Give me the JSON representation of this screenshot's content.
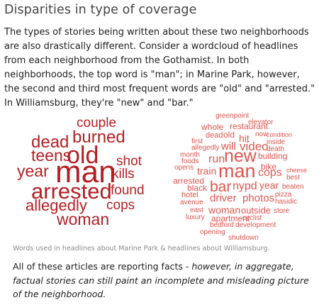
{
  "heading": "Disparities in type of coverage",
  "intro": "The types of stories being written about these two neighborhoods are also drastically different. Consider a wordcloud of headlines from each neighborhood from the Gothamist. In both neighborhoods, the top word is \"man\"; in Marine Park, however, the second and third most frequent words are \"old\" and \"arrested.\" In Williamsburg, they're \"new\" and \"bar.\"",
  "wordcloud_left": {
    "words": [
      "couple",
      "burned",
      "dead",
      "old",
      "teens",
      "shot",
      "year",
      "man",
      "kills",
      "arrested",
      "found",
      "allegedly",
      "cops",
      "woman"
    ],
    "color": "#b51f24"
  },
  "wordcloud_right": {
    "words": [
      "greenpoint",
      "elevator",
      "whole",
      "restaurant",
      "dead",
      "old",
      "hit",
      "now",
      "condition",
      "first",
      "inside",
      "allegedly",
      "will",
      "video",
      "death",
      "month",
      "building",
      "foods",
      "run",
      "new",
      "opens",
      "train",
      "man",
      "bike",
      "cops",
      "cheese",
      "arrested",
      "best",
      "black",
      "bar",
      "nypd",
      "year",
      "beaten",
      "hotel",
      "driver",
      "photos",
      "pizza",
      "avenue",
      "hasidic",
      "east",
      "woman",
      "outside",
      "store",
      "luxury",
      "apartment",
      "cyclist",
      "bedford",
      "development",
      "opening",
      "shutdown"
    ],
    "color": "#e0554e"
  },
  "caption": "Words used in headlines about Marine Park & headlines about Williamsburg.",
  "outro": {
    "lead": "All of these articles are reporting facts - ",
    "emphasis": "however, in aggregate, factual stories can still paint an incomplete and misleading picture of the neighborhood",
    "end": "."
  }
}
